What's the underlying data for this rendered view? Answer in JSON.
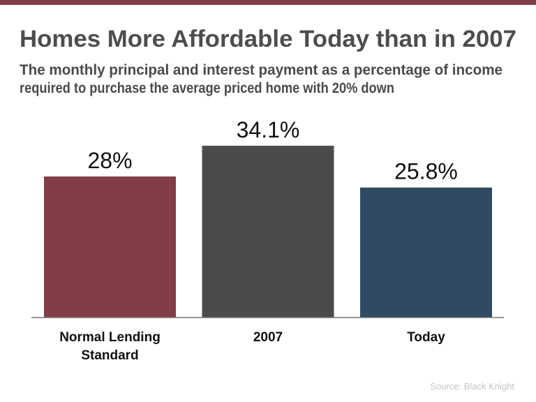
{
  "header": {
    "title": "Homes More Affordable Today than in 2007",
    "subtitle_line1": "The monthly principal and interest payment as a percentage of income",
    "subtitle_line2": "required to purchase the average priced home with 20% down"
  },
  "source": "Source: Black Knight",
  "colors": {
    "stripe": "#823d46",
    "title": "#4d4d4d"
  },
  "chart_data": {
    "type": "bar",
    "title": "Homes More Affordable Today than in 2007",
    "categories": [
      [
        "Normal Lending",
        "Standard"
      ],
      [
        "2007"
      ],
      [
        "Today"
      ]
    ],
    "values": [
      28,
      34.1,
      25.8
    ],
    "data_labels": [
      "28%",
      "34.1%",
      "25.8%"
    ],
    "colors": [
      "#823d46",
      "#4b4b4b",
      "#2f4a62"
    ],
    "xlabel": "",
    "ylabel": "",
    "ylim": [
      0,
      35
    ],
    "grid": false,
    "legend": "none"
  }
}
